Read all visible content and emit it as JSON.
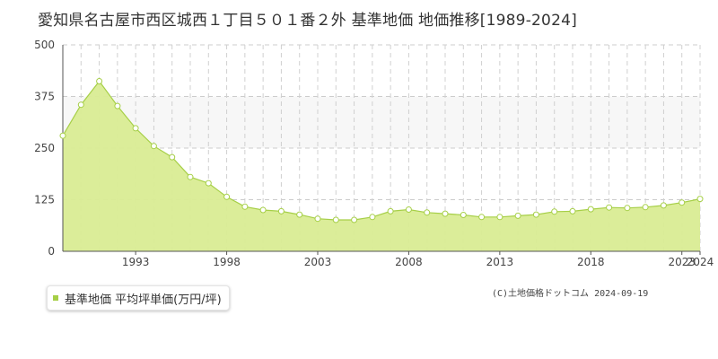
{
  "title": "愛知県名古屋市西区城西１丁目５０１番２外 基準地価 地価推移[1989-2024]",
  "legend": {
    "label": "基準地価 平均坪単価(万円/坪)"
  },
  "credit": "(C)土地価格ドットコム 2024-09-19",
  "colors": {
    "fill": "#d9ec94",
    "line": "#a6cf47",
    "marker_fill": "#ffffff",
    "legend_swatch": "#a6cf47"
  },
  "chart_data": {
    "type": "area",
    "x": [
      1989,
      1990,
      1991,
      1992,
      1993,
      1994,
      1995,
      1996,
      1997,
      1998,
      1999,
      2000,
      2001,
      2002,
      2003,
      2004,
      2005,
      2006,
      2007,
      2008,
      2009,
      2010,
      2011,
      2012,
      2013,
      2014,
      2015,
      2016,
      2017,
      2018,
      2019,
      2020,
      2021,
      2022,
      2023,
      2024
    ],
    "series": [
      {
        "values": [
          280,
          355,
          412,
          352,
          298,
          255,
          228,
          180,
          165,
          132,
          108,
          100,
          97,
          89,
          79,
          76,
          76,
          83,
          97,
          101,
          94,
          91,
          88,
          83,
          83,
          86,
          89,
          96,
          97,
          102,
          106,
          105,
          107,
          111,
          118,
          127
        ]
      }
    ],
    "ylim": [
      0,
      500
    ],
    "yticks": [
      "0",
      "125",
      "250",
      "375",
      "500"
    ],
    "xtick_values": [
      1993,
      1998,
      2003,
      2008,
      2013,
      2018,
      2023,
      2024
    ],
    "xtick_labels": [
      "1993",
      "1998",
      "2003",
      "2008",
      "2013",
      "2018",
      "2023",
      "2024"
    ],
    "grid": true
  }
}
